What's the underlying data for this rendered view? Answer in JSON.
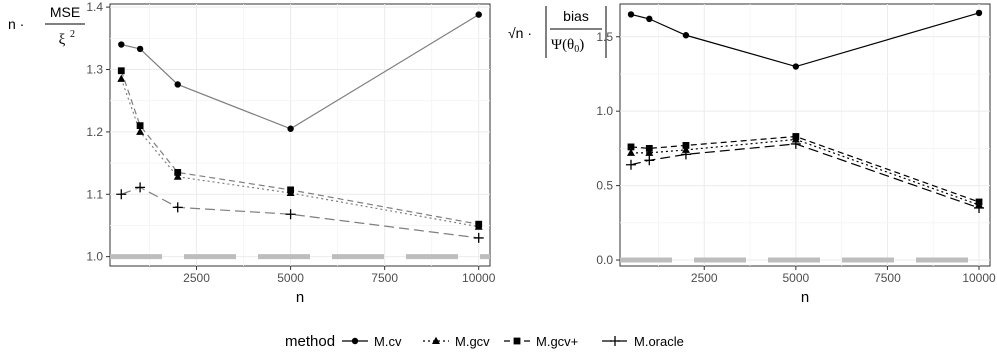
{
  "chart_data": [
    {
      "type": "line",
      "panel": "left",
      "ylabel_parts": {
        "prefix": "n ·",
        "numerator": "MSE",
        "denominator": "ξ",
        "denominator_sup": "2"
      },
      "xlabel": "n",
      "xlim": [
        200,
        10300
      ],
      "ylim": [
        0.985,
        1.405
      ],
      "x_ticks": [
        2500,
        5000,
        7500,
        10000
      ],
      "y_ticks": [
        1.0,
        1.1,
        1.2,
        1.3,
        1.4
      ],
      "y_tick_labels": [
        "1.0",
        "1.1",
        "1.2",
        "1.3",
        "1.4"
      ],
      "grid": true,
      "reference_line": {
        "y": 1.0,
        "style": "long-dash",
        "color": "#bdbdbd"
      },
      "x": [
        500,
        1000,
        2000,
        5000,
        10000
      ],
      "series": [
        {
          "name": "M.cv",
          "values": [
            1.34,
            1.333,
            1.276,
            1.205,
            1.388
          ],
          "color": "#7f7f7f",
          "dash": "solid",
          "marker": "circle"
        },
        {
          "name": "M.gcv",
          "values": [
            1.285,
            1.2,
            1.128,
            1.102,
            1.048
          ],
          "color": "#7f7f7f",
          "dash": "dotted",
          "marker": "triangle"
        },
        {
          "name": "M.gcv+",
          "values": [
            1.298,
            1.21,
            1.135,
            1.107,
            1.052
          ],
          "color": "#7f7f7f",
          "dash": "dashed",
          "marker": "square"
        },
        {
          "name": "M.oracle",
          "values": [
            1.1,
            1.111,
            1.079,
            1.068,
            1.03
          ],
          "color": "#7f7f7f",
          "dash": "longdash",
          "marker": "plus"
        }
      ]
    },
    {
      "type": "line",
      "panel": "right",
      "ylabel_parts": {
        "prefix": "√n ·",
        "numerator": "bias",
        "denominator": "Ψ(θ",
        "denominator_sub": "0",
        "denominator_close": ")"
      },
      "xlabel": "n",
      "xlim": [
        200,
        10300
      ],
      "ylim": [
        -0.04,
        1.72
      ],
      "x_ticks": [
        2500,
        5000,
        7500,
        10000
      ],
      "y_ticks": [
        0.0,
        0.5,
        1.0,
        1.5
      ],
      "y_tick_labels": [
        "0.0",
        "0.5",
        "1.0",
        "1.5"
      ],
      "grid": true,
      "reference_line": {
        "y": 0.0,
        "style": "long-dash",
        "color": "#bdbdbd"
      },
      "x": [
        500,
        1000,
        2000,
        5000,
        10000
      ],
      "series": [
        {
          "name": "M.cv",
          "values": [
            1.65,
            1.62,
            1.51,
            1.3,
            1.66
          ],
          "color": "#000000",
          "dash": "solid",
          "marker": "circle"
        },
        {
          "name": "M.gcv",
          "values": [
            0.72,
            0.72,
            0.74,
            0.81,
            0.37
          ],
          "color": "#000000",
          "dash": "dotted",
          "marker": "triangle"
        },
        {
          "name": "M.gcv+",
          "values": [
            0.76,
            0.75,
            0.77,
            0.83,
            0.39
          ],
          "color": "#000000",
          "dash": "dashed",
          "marker": "square"
        },
        {
          "name": "M.oracle",
          "values": [
            0.64,
            0.67,
            0.71,
            0.78,
            0.35
          ],
          "color": "#000000",
          "dash": "longdash",
          "marker": "plus"
        }
      ]
    }
  ],
  "legend": {
    "title": "method",
    "placement": "bottom",
    "items": [
      "M.cv",
      "M.gcv",
      "M.gcv+",
      "M.oracle"
    ]
  }
}
